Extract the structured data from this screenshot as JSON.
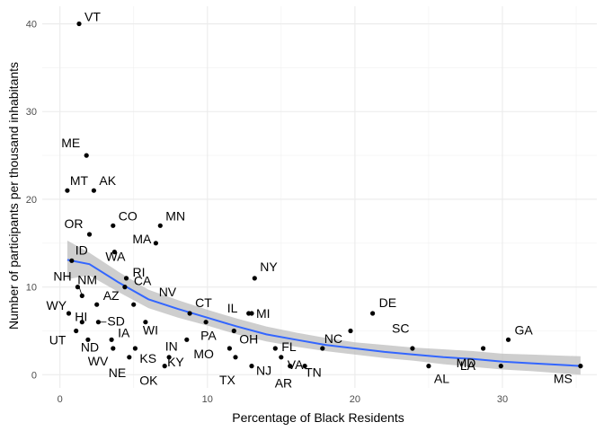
{
  "chart_data": {
    "type": "scatter",
    "title": "",
    "xlabel": "Percentage of Black Residents",
    "ylabel": "Number of participants per thousand inhabitants",
    "xlim": [
      -1.2,
      36.4
    ],
    "ylim": [
      -1.5,
      42
    ],
    "x_ticks": [
      0,
      10,
      20,
      30
    ],
    "y_ticks": [
      0,
      10,
      20,
      30,
      40
    ],
    "x_tick_labels": [
      "0",
      "10",
      "20",
      "30"
    ],
    "y_tick_labels": [
      "0",
      "10",
      "20",
      "30",
      "40"
    ],
    "grid": true,
    "legend": "none",
    "point_color": "#000000",
    "fit_color": "#3366ff",
    "band_color": "#bdbdbd",
    "points": [
      {
        "label": "VT",
        "x": 1.3,
        "y": 40.0
      },
      {
        "label": "ME",
        "x": 1.8,
        "y": 25.0
      },
      {
        "label": "MT",
        "x": 0.5,
        "y": 21.0
      },
      {
        "label": "AK",
        "x": 2.3,
        "y": 21.0
      },
      {
        "label": "CO",
        "x": 3.6,
        "y": 17.0
      },
      {
        "label": "MN",
        "x": 6.8,
        "y": 17.0
      },
      {
        "label": "OR",
        "x": 2.0,
        "y": 16.0
      },
      {
        "label": "MA",
        "x": 6.5,
        "y": 15.0
      },
      {
        "label": "WA",
        "x": 3.7,
        "y": 14.0
      },
      {
        "label": "ID",
        "x": 0.8,
        "y": 13.0
      },
      {
        "label": "NY",
        "x": 13.2,
        "y": 11.0
      },
      {
        "label": "RI",
        "x": 4.5,
        "y": 11.0
      },
      {
        "label": "NH",
        "x": 1.2,
        "y": 10.0
      },
      {
        "label": "CA",
        "x": 4.4,
        "y": 10.0
      },
      {
        "label": "NM",
        "x": 1.5,
        "y": 9.0
      },
      {
        "label": "AZ",
        "x": 2.5,
        "y": 8.0
      },
      {
        "label": "NV",
        "x": 5.0,
        "y": 8.0
      },
      {
        "label": "WY",
        "x": 0.6,
        "y": 7.0
      },
      {
        "label": "CT",
        "x": 8.8,
        "y": 7.0
      },
      {
        "label": "IL",
        "x": 12.8,
        "y": 7.0
      },
      {
        "label": "MI",
        "x": 13.0,
        "y": 7.0
      },
      {
        "label": "DE",
        "x": 21.2,
        "y": 7.0
      },
      {
        "label": "HI",
        "x": 1.5,
        "y": 6.0
      },
      {
        "label": "SD",
        "x": 2.6,
        "y": 6.0
      },
      {
        "label": "WI",
        "x": 5.8,
        "y": 6.0
      },
      {
        "label": "PA",
        "x": 9.9,
        "y": 6.0
      },
      {
        "label": "UT",
        "x": 1.1,
        "y": 5.0
      },
      {
        "label": "OH",
        "x": 11.8,
        "y": 5.0
      },
      {
        "label": "SC",
        "x": 19.7,
        "y": 5.0
      },
      {
        "label": "ND",
        "x": 1.9,
        "y": 4.0
      },
      {
        "label": "IA",
        "x": 3.5,
        "y": 4.0
      },
      {
        "label": "IN",
        "x": 8.6,
        "y": 4.0
      },
      {
        "label": "GA",
        "x": 30.4,
        "y": 4.0
      },
      {
        "label": "WV",
        "x": 3.6,
        "y": 3.0
      },
      {
        "label": "KS",
        "x": 5.1,
        "y": 3.0
      },
      {
        "label": "MO",
        "x": 11.5,
        "y": 3.0
      },
      {
        "label": "FL",
        "x": 14.6,
        "y": 3.0
      },
      {
        "label": "NC",
        "x": 17.8,
        "y": 3.0
      },
      {
        "label": "MD",
        "x": 28.7,
        "y": 3.0
      },
      {
        "label": "LA",
        "x": 23.9,
        "y": 3.0
      },
      {
        "label": "KY",
        "x": 7.4,
        "y": 2.0
      },
      {
        "label": "NE",
        "x": 4.7,
        "y": 2.0
      },
      {
        "label": "TX",
        "x": 11.9,
        "y": 2.0
      },
      {
        "label": "VA",
        "x": 15.0,
        "y": 2.0
      },
      {
        "label": "NJ",
        "x": 13.0,
        "y": 1.0
      },
      {
        "label": "OK",
        "x": 7.1,
        "y": 1.0
      },
      {
        "label": "AR",
        "x": 15.6,
        "y": 1.0
      },
      {
        "label": "TN",
        "x": 16.6,
        "y": 1.0
      },
      {
        "label": "AL",
        "x": 25.0,
        "y": 1.0
      },
      {
        "label": "MS",
        "x": 35.3,
        "y": 1.0
      },
      {
        "label": "",
        "x": 29.9,
        "y": 1.0
      }
    ],
    "fit_line": [
      {
        "x": 0.5,
        "y": 13.1
      },
      {
        "x": 2.0,
        "y": 12.6
      },
      {
        "x": 4.0,
        "y": 10.5
      },
      {
        "x": 6.0,
        "y": 8.6
      },
      {
        "x": 8.0,
        "y": 7.5
      },
      {
        "x": 10.0,
        "y": 6.5
      },
      {
        "x": 12.0,
        "y": 5.5
      },
      {
        "x": 14.0,
        "y": 4.6
      },
      {
        "x": 16.0,
        "y": 4.0
      },
      {
        "x": 18.0,
        "y": 3.4
      },
      {
        "x": 20.0,
        "y": 3.0
      },
      {
        "x": 22.0,
        "y": 2.6
      },
      {
        "x": 24.0,
        "y": 2.3
      },
      {
        "x": 26.0,
        "y": 2.0
      },
      {
        "x": 28.0,
        "y": 1.8
      },
      {
        "x": 30.0,
        "y": 1.5
      },
      {
        "x": 32.0,
        "y": 1.3
      },
      {
        "x": 35.3,
        "y": 1.0
      }
    ],
    "band_upper": [
      15.3,
      13.9,
      11.7,
      9.7,
      8.5,
      7.4,
      6.4,
      5.5,
      4.8,
      4.2,
      3.7,
      3.4,
      3.1,
      2.9,
      2.7,
      2.4,
      2.3,
      2.1
    ],
    "band_lower": [
      10.9,
      11.3,
      9.4,
      7.6,
      6.5,
      5.6,
      4.6,
      3.8,
      3.2,
      2.7,
      2.3,
      1.9,
      1.6,
      1.2,
      0.9,
      0.6,
      0.4,
      0.0
    ]
  }
}
